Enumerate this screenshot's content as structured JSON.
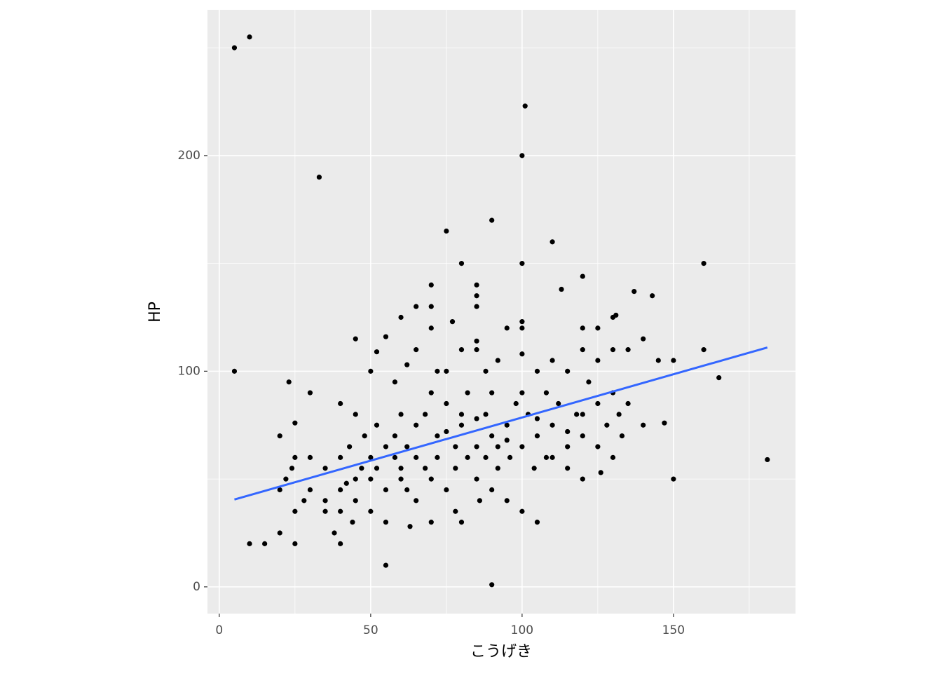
{
  "chart_data": {
    "type": "scatter",
    "x_label": "こうげき",
    "y_label": "HP",
    "x": [
      5,
      10,
      101,
      100,
      33,
      90,
      75,
      110,
      80,
      100,
      160,
      120,
      70,
      85,
      85,
      85,
      65,
      70,
      113,
      137,
      143,
      60,
      77,
      100,
      130,
      131,
      100,
      70,
      95,
      120,
      125,
      45,
      55,
      85,
      140,
      150,
      181,
      165,
      160,
      5,
      23,
      30,
      10,
      15,
      55,
      90,
      92,
      110,
      130,
      150,
      145,
      105,
      80,
      40,
      25,
      20,
      20,
      25,
      40,
      45,
      50,
      52,
      58,
      62,
      65,
      72,
      75,
      80,
      85,
      88,
      100,
      105,
      115,
      120,
      125,
      135,
      135,
      140,
      147,
      133,
      126,
      120,
      115,
      110,
      100,
      86,
      78,
      70,
      63,
      55,
      50,
      44,
      38,
      35,
      30,
      28,
      25,
      20,
      22,
      24,
      25,
      30,
      35,
      40,
      40,
      43,
      45,
      48,
      50,
      52,
      55,
      58,
      60,
      62,
      65,
      68,
      70,
      72,
      75,
      78,
      80,
      82,
      85,
      88,
      90,
      92,
      95,
      98,
      100,
      102,
      105,
      108,
      110,
      112,
      115,
      118,
      120,
      122,
      125,
      128,
      130,
      132,
      130,
      125,
      90,
      95,
      85,
      75,
      65,
      60,
      55,
      50,
      45,
      40,
      35,
      58,
      62,
      68,
      72,
      78,
      82,
      88,
      92,
      96,
      104,
      108,
      100,
      90,
      80,
      70,
      60,
      52,
      47,
      42,
      65,
      75,
      85,
      95,
      105,
      115,
      120
    ],
    "y": [
      250,
      255,
      223,
      200,
      190,
      170,
      165,
      160,
      150,
      150,
      150,
      144,
      140,
      140,
      135,
      130,
      130,
      130,
      138,
      137,
      135,
      125,
      123,
      123,
      125,
      126,
      120,
      120,
      120,
      120,
      120,
      115,
      116,
      114,
      115,
      50,
      59,
      97,
      110,
      100,
      95,
      90,
      20,
      20,
      10,
      1,
      105,
      105,
      110,
      105,
      105,
      30,
      30,
      20,
      20,
      25,
      70,
      76,
      85,
      80,
      100,
      109,
      95,
      103,
      110,
      100,
      100,
      110,
      110,
      100,
      108,
      100,
      100,
      110,
      105,
      110,
      85,
      75,
      76,
      70,
      53,
      50,
      55,
      60,
      35,
      40,
      35,
      30,
      28,
      30,
      35,
      30,
      25,
      40,
      45,
      40,
      35,
      45,
      50,
      55,
      60,
      60,
      55,
      60,
      45,
      65,
      50,
      70,
      60,
      75,
      65,
      70,
      55,
      45,
      60,
      80,
      50,
      70,
      85,
      65,
      75,
      90,
      65,
      80,
      70,
      55,
      75,
      85,
      65,
      80,
      70,
      90,
      75,
      85,
      65,
      80,
      70,
      95,
      85,
      75,
      90,
      80,
      60,
      65,
      45,
      40,
      50,
      45,
      40,
      50,
      45,
      50,
      40,
      35,
      35,
      60,
      65,
      55,
      60,
      55,
      60,
      60,
      65,
      60,
      55,
      60,
      90,
      90,
      80,
      90,
      80,
      55,
      55,
      48,
      75,
      72,
      78,
      68,
      78,
      72,
      80
    ],
    "color": "#000000",
    "fit": {
      "x": [
        5,
        181
      ],
      "y": [
        40.5,
        111
      ],
      "color": "#3366FF"
    },
    "xlim": [
      -3.9,
      190.3
    ],
    "ylim": [
      -12.4,
      267.6
    ],
    "xticks": [
      0,
      50,
      100,
      150
    ],
    "yticks": [
      0,
      100,
      200
    ],
    "xminor": [
      25,
      75,
      125,
      175
    ],
    "yminor": [
      50,
      150,
      250
    ],
    "grid": true,
    "panel_color": "#EBEBEB"
  }
}
